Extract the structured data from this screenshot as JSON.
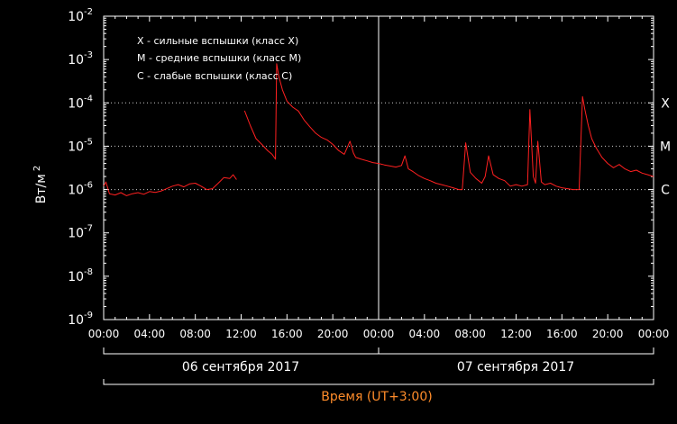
{
  "chart_data": {
    "type": "line",
    "ylabel_main": "Вт/м",
    "ylabel_exp": "2",
    "yscale": "log",
    "ylim": [
      1e-09,
      0.01
    ],
    "ytick_exponents": [
      -9,
      -8,
      -7,
      -6,
      -5,
      -4,
      -3,
      -2
    ],
    "ytick_base": "10",
    "xlim_hours": [
      0,
      48
    ],
    "xtick_labels": [
      "00:00",
      "04:00",
      "08:00",
      "12:00",
      "16:00",
      "20:00",
      "00:00",
      "04:00",
      "08:00",
      "12:00",
      "16:00",
      "20:00",
      "00:00"
    ],
    "day_labels": [
      "06 сентября 2017",
      "07 сентября 2017"
    ],
    "xlabel": "Время (UT+3:00)",
    "grid": false,
    "legend": [
      "X - сильные вспышки (класс X)",
      "M - средние вспышки (класс M)",
      "C - слабые вспышки (класс C)"
    ],
    "legend_placement": "top-left",
    "class_levels": [
      {
        "label": "X",
        "value": 0.0001
      },
      {
        "label": "M",
        "value": 1e-05
      },
      {
        "label": "C",
        "value": 1e-06
      }
    ],
    "series_color": "#ff2020",
    "series": [
      {
        "segments": [
          [
            [
              0,
              1.2e-06
            ],
            [
              0.2,
              1.5e-06
            ],
            [
              0.5,
              8e-07
            ],
            [
              1,
              7.5e-07
            ],
            [
              1.5,
              8.5e-07
            ],
            [
              2,
              7.2e-07
            ],
            [
              2.5,
              8e-07
            ],
            [
              3,
              8.5e-07
            ],
            [
              3.5,
              7.8e-07
            ],
            [
              4,
              9e-07
            ],
            [
              4.5,
              8.6e-07
            ],
            [
              5,
              9.2e-07
            ],
            [
              5.5,
              1.05e-06
            ],
            [
              6,
              1.2e-06
            ],
            [
              6.5,
              1.3e-06
            ],
            [
              7,
              1.15e-06
            ],
            [
              7.5,
              1.35e-06
            ],
            [
              8,
              1.4e-06
            ],
            [
              8.5,
              1.2e-06
            ],
            [
              9,
              1e-06
            ],
            [
              9.5,
              1.05e-06
            ],
            [
              10,
              1.4e-06
            ],
            [
              10.5,
              1.9e-06
            ],
            [
              11,
              1.8e-06
            ],
            [
              11.3,
              2.2e-06
            ],
            [
              11.6,
              1.7e-06
            ]
          ],
          [
            [
              12.3,
              6.6e-05
            ],
            [
              12.8,
              3e-05
            ],
            [
              13.3,
              1.5e-05
            ],
            [
              13.8,
              1.1e-05
            ],
            [
              14.3,
              8e-06
            ],
            [
              14.7,
              6.5e-06
            ],
            [
              15,
              5e-06
            ],
            [
              15.1,
              0.0008
            ],
            [
              15.3,
              0.0004
            ],
            [
              15.6,
              0.0002
            ],
            [
              16,
              0.00011
            ],
            [
              16.5,
              8e-05
            ],
            [
              17,
              6.5e-05
            ],
            [
              17.5,
              4e-05
            ],
            [
              18,
              2.8e-05
            ],
            [
              18.5,
              2e-05
            ],
            [
              19,
              1.6e-05
            ],
            [
              19.5,
              1.4e-05
            ],
            [
              20,
              1.1e-05
            ],
            [
              20.5,
              8e-06
            ],
            [
              21,
              6.5e-06
            ],
            [
              21.5,
              1.3e-05
            ],
            [
              21.8,
              7e-06
            ],
            [
              22,
              5.5e-06
            ],
            [
              22.5,
              5e-06
            ],
            [
              23,
              4.6e-06
            ],
            [
              23.5,
              4.2e-06
            ],
            [
              24,
              4e-06
            ],
            [
              24.5,
              3.7e-06
            ],
            [
              25,
              3.5e-06
            ],
            [
              25.5,
              3.3e-06
            ],
            [
              26,
              3.6e-06
            ],
            [
              26.3,
              6e-06
            ],
            [
              26.6,
              3e-06
            ],
            [
              27,
              2.6e-06
            ],
            [
              27.5,
              2.1e-06
            ],
            [
              28,
              1.8e-06
            ],
            [
              28.5,
              1.6e-06
            ],
            [
              29,
              1.4e-06
            ],
            [
              29.5,
              1.3e-06
            ],
            [
              30,
              1.2e-06
            ],
            [
              30.5,
              1.1e-06
            ],
            [
              31,
              1e-06
            ],
            [
              31.3,
              1e-06
            ],
            [
              31.6,
              1.2e-05
            ],
            [
              32,
              2.5e-06
            ],
            [
              32.5,
              1.8e-06
            ],
            [
              33,
              1.4e-06
            ],
            [
              33.3,
              2e-06
            ],
            [
              33.6,
              6e-06
            ],
            [
              34,
              2.2e-06
            ],
            [
              34.5,
              1.8e-06
            ],
            [
              35,
              1.6e-06
            ],
            [
              35.5,
              1.2e-06
            ],
            [
              36,
              1.3e-06
            ],
            [
              36.5,
              1.2e-06
            ],
            [
              37,
              1.3e-06
            ],
            [
              37.2,
              7e-05
            ],
            [
              37.5,
              2e-06
            ],
            [
              37.7,
              1.4e-06
            ],
            [
              37.9,
              1.3e-05
            ],
            [
              38.2,
              1.5e-06
            ],
            [
              38.5,
              1.3e-06
            ],
            [
              39,
              1.4e-06
            ],
            [
              39.5,
              1.2e-06
            ],
            [
              40,
              1.1e-06
            ],
            [
              40.5,
              1.05e-06
            ],
            [
              41,
              1e-06
            ],
            [
              41.5,
              1e-06
            ],
            [
              41.8,
              0.00014
            ],
            [
              42,
              7e-05
            ],
            [
              42.3,
              3e-05
            ],
            [
              42.6,
              1.5e-05
            ],
            [
              43,
              9e-06
            ],
            [
              43.5,
              5.5e-06
            ],
            [
              44,
              4e-06
            ],
            [
              44.5,
              3.2e-06
            ],
            [
              45,
              3.8e-06
            ],
            [
              45.5,
              3e-06
            ],
            [
              46,
              2.6e-06
            ],
            [
              46.5,
              2.8e-06
            ],
            [
              47,
              2.4e-06
            ],
            [
              47.5,
              2.2e-06
            ],
            [
              48,
              2e-06
            ]
          ]
        ]
      }
    ]
  }
}
